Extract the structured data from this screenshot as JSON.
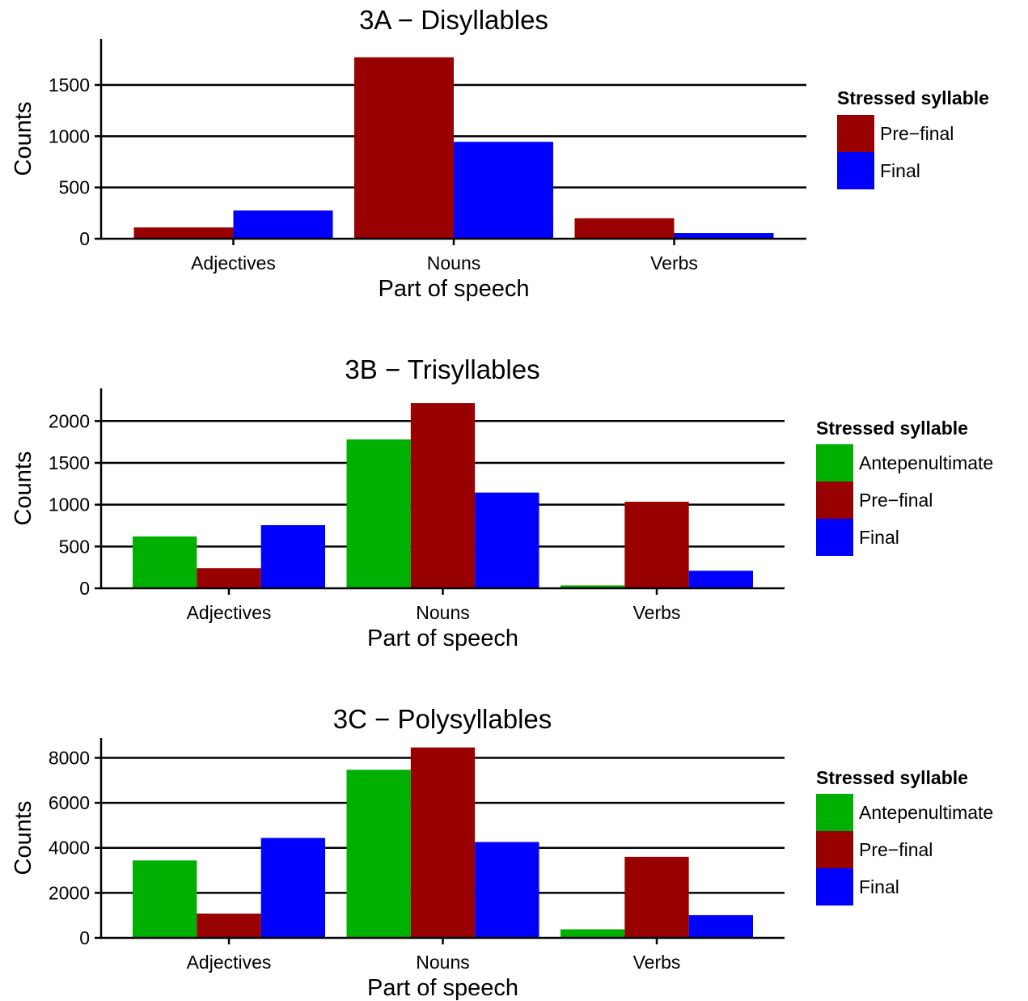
{
  "colors": {
    "antepenultimate": "#00b000",
    "prefinal": "#990000",
    "final": "#0000ff"
  },
  "chart_data": [
    {
      "type": "bar",
      "title": "3A − Disyllables",
      "xlabel": "Part of speech",
      "ylabel": "Counts",
      "categories": [
        "Adjectives",
        "Nouns",
        "Verbs"
      ],
      "series": [
        {
          "name": "Pre−final",
          "color": "#990000",
          "values": [
            110,
            1770,
            200
          ]
        },
        {
          "name": "Final",
          "color": "#0000ff",
          "values": [
            275,
            945,
            55
          ]
        }
      ],
      "yticks": [
        0,
        500,
        1000,
        1500
      ],
      "ylim": [
        0,
        1950
      ],
      "grid": "horizontal",
      "legend": {
        "title": "Stressed syllable",
        "position": "right",
        "entries": [
          "Pre−final",
          "Final"
        ]
      }
    },
    {
      "type": "bar",
      "title": "3B − Trisyllables",
      "xlabel": "Part of speech",
      "ylabel": "Counts",
      "categories": [
        "Adjectives",
        "Nouns",
        "Verbs"
      ],
      "series": [
        {
          "name": "Antepenultimate",
          "color": "#00b000",
          "values": [
            620,
            1780,
            35
          ]
        },
        {
          "name": "Pre−final",
          "color": "#990000",
          "values": [
            240,
            2215,
            1035
          ]
        },
        {
          "name": "Final",
          "color": "#0000ff",
          "values": [
            755,
            1145,
            210
          ]
        }
      ],
      "yticks": [
        0,
        500,
        1000,
        1500,
        2000
      ],
      "ylim": [
        0,
        2390
      ],
      "grid": "horizontal",
      "legend": {
        "title": "Stressed syllable",
        "position": "right",
        "entries": [
          "Antepenultimate",
          "Pre−final",
          "Final"
        ]
      }
    },
    {
      "type": "bar",
      "title": "3C − Polysyllables",
      "xlabel": "Part of speech",
      "ylabel": "Counts",
      "categories": [
        "Adjectives",
        "Nouns",
        "Verbs"
      ],
      "series": [
        {
          "name": "Antepenultimate",
          "color": "#00b000",
          "values": [
            3440,
            7470,
            380
          ]
        },
        {
          "name": "Pre−final",
          "color": "#990000",
          "values": [
            1080,
            8460,
            3600
          ]
        },
        {
          "name": "Final",
          "color": "#0000ff",
          "values": [
            4440,
            4260,
            1010
          ]
        }
      ],
      "yticks": [
        0,
        2000,
        4000,
        6000,
        8000
      ],
      "ylim": [
        0,
        8880
      ],
      "grid": "horizontal",
      "legend": {
        "title": "Stressed syllable",
        "position": "right",
        "entries": [
          "Antepenultimate",
          "Pre−final",
          "Final"
        ]
      }
    }
  ]
}
